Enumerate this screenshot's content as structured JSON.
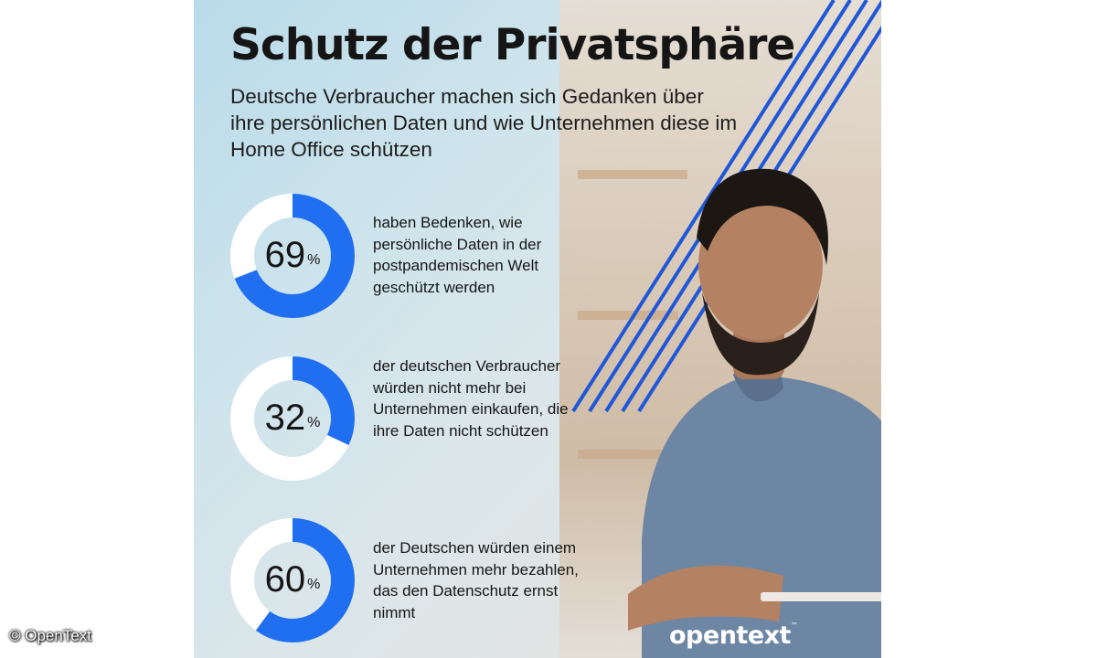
{
  "infographic": {
    "title": "Schutz der Privatsphäre",
    "subtitle": "Deutsche Verbraucher machen sich Gedanken über ihre persönlichen Daten und wie Unternehmen diese im Home Office schützen",
    "stats": [
      {
        "value": "69",
        "unit": "%",
        "fraction": 0.69,
        "text": "haben Bedenken, wie persönliche Daten in der postpandemischen Welt geschützt werden"
      },
      {
        "value": "32",
        "unit": "%",
        "fraction": 0.32,
        "text": "der deutschen Verbraucher würden nicht mehr bei Unternehmen einkaufen, die ihre Daten nicht schützen"
      },
      {
        "value": "60",
        "unit": "%",
        "fraction": 0.6,
        "text": "der Deutschen würden einem Unternehmen mehr bezahlen, das den Datenschutz ernst nimmt"
      }
    ],
    "brand": "opentext",
    "brand_tm": "™"
  },
  "copyright": "© OpenText",
  "colors": {
    "ring_filled": "#1f6ff0",
    "ring_track": "#ffffff",
    "stripe": "#1f57d8"
  }
}
